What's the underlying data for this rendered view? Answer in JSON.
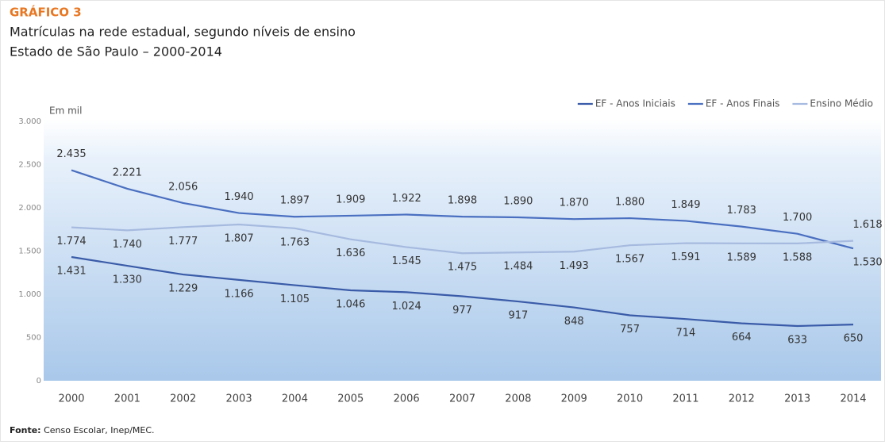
{
  "chart_data": {
    "type": "line",
    "title": "GRÁFICO 3",
    "subtitle": [
      "Matrículas na rede estadual, segundo níveis de ensino",
      "Estado de São Paulo – 2000-2014"
    ],
    "y_label": "Em mil",
    "source": {
      "label": "Fonte:",
      "text": "Censo Escolar, Inep/MEC."
    },
    "categories": [
      "2000",
      "2001",
      "2002",
      "2003",
      "2004",
      "2005",
      "2006",
      "2007",
      "2008",
      "2009",
      "2010",
      "2011",
      "2012",
      "2013",
      "2014"
    ],
    "series": [
      {
        "name": "EF - Anos Iniciais",
        "color": "#3a5ba8",
        "values": [
          1431,
          1330,
          1229,
          1166,
          1105,
          1046,
          1024,
          977,
          917,
          848,
          757,
          714,
          664,
          633,
          650
        ],
        "value_labels": [
          "1.431",
          "1.330",
          "1.229",
          "1.166",
          "1.105",
          "1.046",
          "1.024",
          "977",
          "917",
          "848",
          "757",
          "714",
          "664",
          "633",
          "650"
        ]
      },
      {
        "name": "EF - Anos Finais",
        "color": "#4a6fc0",
        "values": [
          2435,
          2221,
          2056,
          1940,
          1897,
          1909,
          1922,
          1898,
          1890,
          1870,
          1880,
          1849,
          1783,
          1700,
          1530
        ],
        "value_labels": [
          "2.435",
          "2.221",
          "2.056",
          "1.940",
          "1.897",
          "1.909",
          "1.922",
          "1.898",
          "1.890",
          "1.870",
          "1.880",
          "1.849",
          "1.783",
          "1.700",
          "1.530"
        ]
      },
      {
        "name": "Ensino Médio",
        "color": "#a6badf",
        "values": [
          1774,
          1740,
          1777,
          1807,
          1763,
          1636,
          1545,
          1475,
          1484,
          1493,
          1567,
          1591,
          1589,
          1588,
          1618
        ],
        "value_labels": [
          "1.774",
          "1.740",
          "1.777",
          "1.807",
          "1.763",
          "1.636",
          "1.545",
          "1.475",
          "1.484",
          "1.493",
          "1.567",
          "1.591",
          "1.589",
          "1.588",
          "1.618"
        ]
      }
    ],
    "ylim": [
      0,
      3000
    ],
    "yticks": [
      0,
      500,
      {
        "value": 1000,
        "label": "1.000"
      },
      {
        "value": 1500,
        "label": "1.500"
      },
      {
        "value": 2000,
        "label": "2.000"
      },
      {
        "value": 2500,
        "label": "2.500"
      },
      {
        "value": 3000,
        "label": "3.000"
      }
    ],
    "legend": "top-right"
  }
}
